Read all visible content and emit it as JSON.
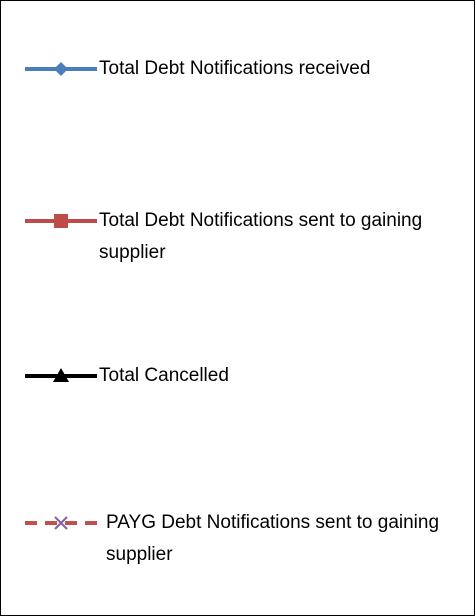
{
  "legend": {
    "entries": [
      {
        "name": "Total Debt Notifications received",
        "color": "#4a7ebb",
        "marker": "diamond",
        "marker_color": "#4a7ebb",
        "dashed": false
      },
      {
        "name": "Total Debt Notifications sent to gaining supplier",
        "color": "#be4b48",
        "marker": "square",
        "marker_color": "#be4b48",
        "dashed": false
      },
      {
        "name": "Total Cancelled",
        "color": "#000000",
        "marker": "triangle",
        "marker_color": "#000000",
        "dashed": false
      },
      {
        "name": "PAYG Debt Notifications sent to gaining supplier",
        "color": "#c0504d",
        "marker": "x",
        "marker_color": "#7f63a8",
        "dashed": true
      }
    ]
  }
}
